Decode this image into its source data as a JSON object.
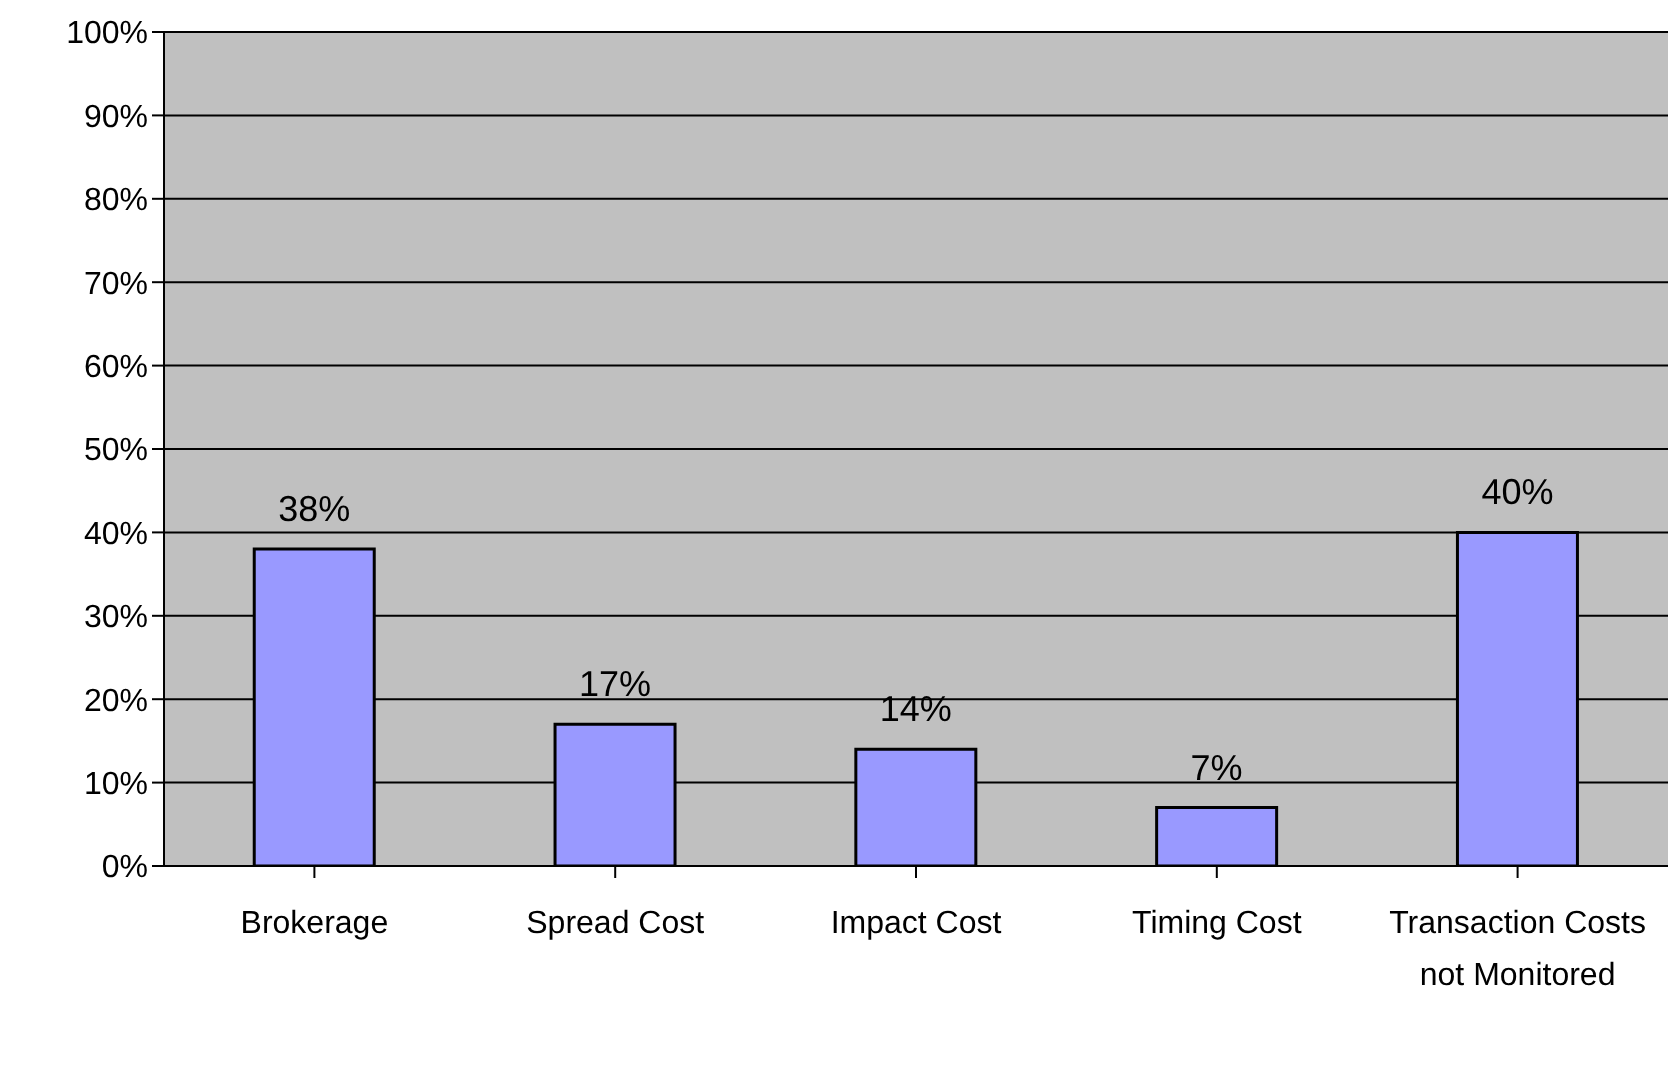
{
  "chart_data": {
    "type": "bar",
    "categories": [
      "Brokerage",
      "Spread Cost",
      "Impact Cost",
      "Timing Cost",
      "Transaction Costs not Monitored"
    ],
    "values": [
      38,
      17,
      14,
      7,
      40
    ],
    "value_labels": [
      "38%",
      "17%",
      "14%",
      "7%",
      "40%"
    ],
    "color": "#9999ff",
    "ylim": [
      0,
      100
    ],
    "yticks": [
      {
        "value": 0,
        "label": "0%"
      },
      {
        "value": 10,
        "label": "10%"
      },
      {
        "value": 20,
        "label": "20%"
      },
      {
        "value": 30,
        "label": "30%"
      },
      {
        "value": 40,
        "label": "40%"
      },
      {
        "value": 50,
        "label": "50%"
      },
      {
        "value": 60,
        "label": "60%"
      },
      {
        "value": 70,
        "label": "70%"
      },
      {
        "value": 80,
        "label": "80%"
      },
      {
        "value": 90,
        "label": "90%"
      },
      {
        "value": 100,
        "label": "100%"
      }
    ],
    "grid": "y",
    "legend": false
  }
}
